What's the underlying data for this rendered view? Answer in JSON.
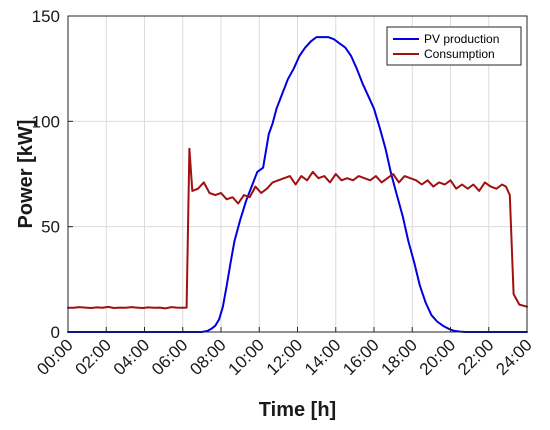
{
  "chart_data": {
    "type": "line",
    "xlabel": "Time [h]",
    "ylabel": "Power [kW]",
    "xlim": [
      0,
      24
    ],
    "ylim": [
      0,
      150
    ],
    "grid": true,
    "legend_position": "top-right",
    "x_ticks": [
      0,
      2,
      4,
      6,
      8,
      10,
      12,
      14,
      16,
      18,
      20,
      22,
      24
    ],
    "x_tick_labels": [
      "00:00",
      "02:00",
      "04:00",
      "06:00",
      "08:00",
      "10:00",
      "12:00",
      "14:00",
      "16:00",
      "18:00",
      "20:00",
      "22:00",
      "24:00"
    ],
    "y_ticks": [
      0,
      50,
      100,
      150
    ],
    "y_tick_labels": [
      "0",
      "50",
      "100",
      "150"
    ],
    "series": [
      {
        "name": "PV production",
        "color": "#0000e0",
        "x": [
          0,
          7.0,
          7.3,
          7.5,
          7.7,
          7.9,
          8.1,
          8.3,
          8.5,
          8.7,
          9.0,
          9.3,
          9.6,
          9.9,
          10.2,
          10.5,
          10.7,
          10.9,
          11.2,
          11.5,
          11.8,
          12.1,
          12.4,
          12.7,
          13.0,
          13.3,
          13.6,
          13.9,
          14.2,
          14.5,
          14.8,
          15.1,
          15.4,
          15.7,
          16.0,
          16.3,
          16.6,
          16.9,
          17.2,
          17.5,
          17.8,
          18.1,
          18.4,
          18.7,
          19.0,
          19.3,
          19.6,
          19.9,
          20.2,
          20.5,
          20.8,
          21.1,
          21.4,
          21.7,
          24
        ],
        "values": [
          0,
          0,
          0.5,
          1.5,
          3,
          6,
          12,
          22,
          33,
          43,
          53,
          62,
          69,
          76,
          78,
          94,
          99,
          106,
          113,
          120,
          125,
          131,
          135,
          138,
          140,
          140,
          140,
          139,
          137,
          135,
          131,
          125,
          118,
          112,
          106,
          97,
          87,
          75,
          65,
          55,
          43,
          33,
          22,
          14,
          8,
          5,
          3,
          1.5,
          0.5,
          0.2,
          0,
          0,
          0,
          0,
          0
        ]
      },
      {
        "name": "Consumption",
        "color": "#a01010",
        "x": [
          0,
          0.3,
          0.6,
          0.9,
          1.2,
          1.5,
          1.8,
          2.1,
          2.4,
          2.7,
          3.0,
          3.3,
          3.6,
          3.9,
          4.2,
          4.5,
          4.8,
          5.1,
          5.4,
          5.7,
          6.0,
          6.2,
          6.35,
          6.5,
          6.8,
          7.1,
          7.4,
          7.7,
          8.0,
          8.3,
          8.6,
          8.9,
          9.2,
          9.5,
          9.8,
          10.1,
          10.4,
          10.7,
          11.0,
          11.3,
          11.6,
          11.9,
          12.2,
          12.5,
          12.8,
          13.1,
          13.4,
          13.7,
          14.0,
          14.3,
          14.6,
          14.9,
          15.2,
          15.5,
          15.8,
          16.1,
          16.4,
          16.7,
          17.0,
          17.3,
          17.6,
          17.9,
          18.2,
          18.5,
          18.8,
          19.1,
          19.4,
          19.7,
          20.0,
          20.3,
          20.6,
          20.9,
          21.2,
          21.5,
          21.8,
          22.1,
          22.4,
          22.7,
          22.9,
          23.1,
          23.3,
          23.6,
          24.0
        ],
        "values": [
          11.5,
          11.5,
          11.8,
          11.6,
          11.4,
          11.7,
          11.5,
          11.9,
          11.4,
          11.6,
          11.5,
          11.8,
          11.6,
          11.4,
          11.7,
          11.5,
          11.6,
          11.2,
          11.8,
          11.6,
          11.5,
          11.6,
          87,
          67,
          68,
          71,
          66,
          65,
          66,
          63,
          64,
          61,
          65,
          64,
          69,
          66,
          68,
          71,
          72,
          73,
          74,
          70,
          74,
          72,
          76,
          73,
          74,
          71,
          75,
          72,
          73,
          72,
          74,
          73,
          72,
          74,
          71,
          73,
          75,
          71,
          74,
          73,
          72,
          70,
          72,
          69,
          71,
          70,
          72,
          68,
          70,
          68,
          70,
          67,
          71,
          69,
          68,
          70,
          69,
          65,
          18,
          13,
          12
        ]
      }
    ]
  }
}
